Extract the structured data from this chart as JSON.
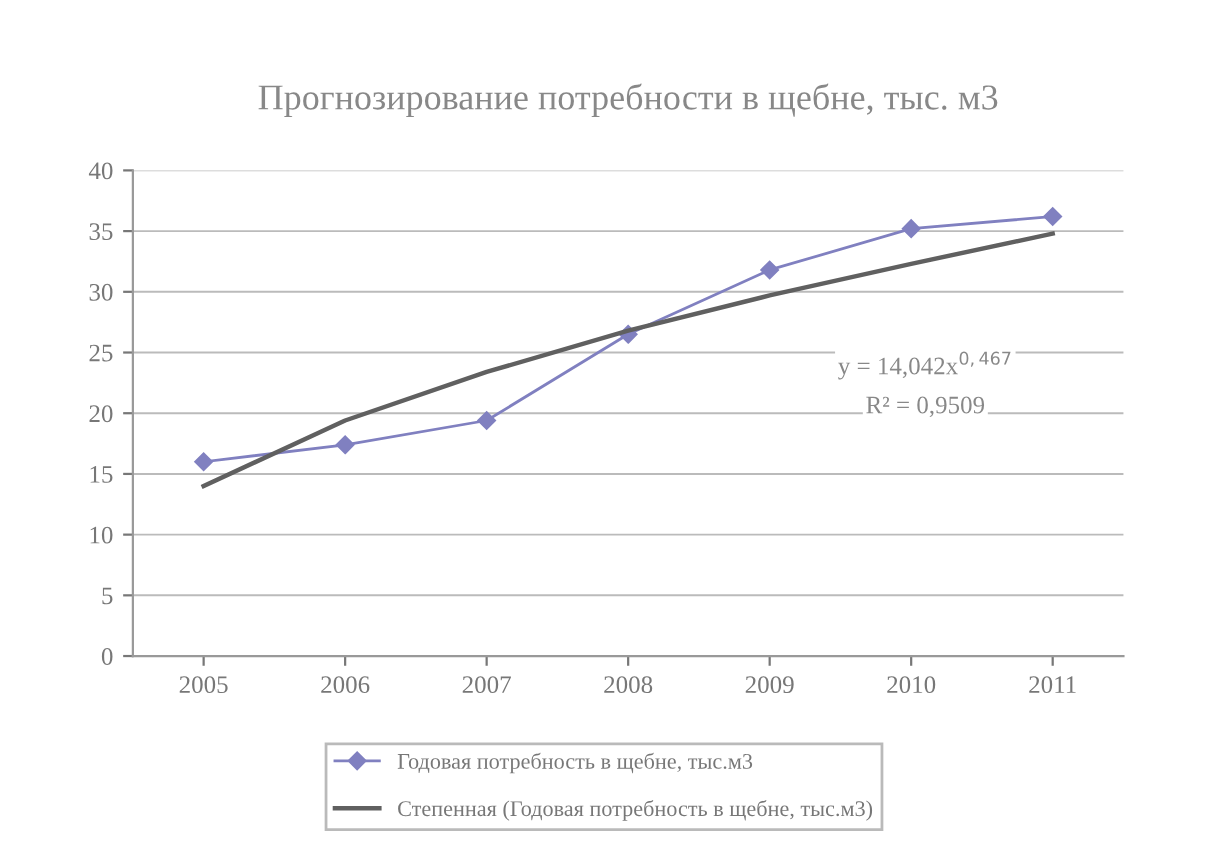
{
  "chart_data": {
    "type": "line",
    "title": "Прогнозирование потребности в щебне, тыс. м3",
    "categories": [
      "2005",
      "2006",
      "2007",
      "2008",
      "2009",
      "2010",
      "2011"
    ],
    "series": [
      {
        "name": "Годовая потребность в щебне, тыс.м3",
        "color": "#8080c0",
        "values": [
          16,
          17.4,
          19.4,
          26.5,
          31.8,
          35.2,
          36.2
        ],
        "marker": "diamond"
      },
      {
        "name": "Степенная (Годовая потребность в щебне, тыс.м3)",
        "color": "#606060",
        "values": [
          14.0,
          19.4,
          23.4,
          26.8,
          29.7,
          32.3,
          34.8
        ],
        "marker": "none"
      }
    ],
    "annotations": [
      "y = 14,042x$^{0,467}$",
      "R² = 0,9509"
    ],
    "ylim": [
      0,
      40
    ],
    "yticks": [
      0,
      5,
      10,
      15,
      20,
      25,
      30,
      35,
      40
    ],
    "grid": "y",
    "legend": "bottom"
  }
}
